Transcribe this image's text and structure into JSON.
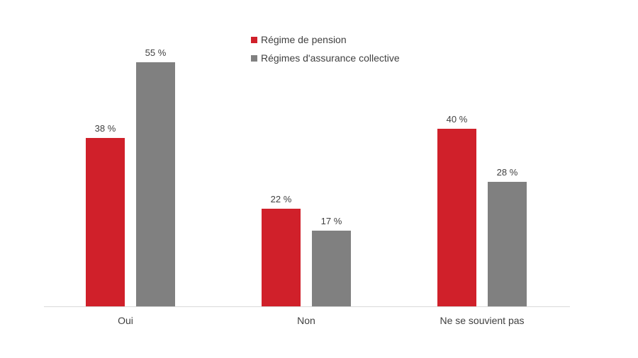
{
  "chart_data": {
    "type": "bar",
    "title": "",
    "xlabel": "",
    "ylabel": "",
    "categories": [
      "Oui",
      "Non",
      "Ne se souvient pas"
    ],
    "series": [
      {
        "name": "Régime de pension",
        "color": "#d0202a",
        "values": [
          38,
          22,
          40
        ],
        "labels": [
          "38 %",
          "22 %",
          "40 %"
        ]
      },
      {
        "name": "Régimes d'assurance collective",
        "color": "#808080",
        "values": [
          55,
          17,
          28
        ],
        "labels": [
          "55 %",
          "17 %",
          "28 %"
        ]
      }
    ],
    "ylim": [
      0,
      55
    ],
    "grid": false,
    "legend_position": "top"
  }
}
